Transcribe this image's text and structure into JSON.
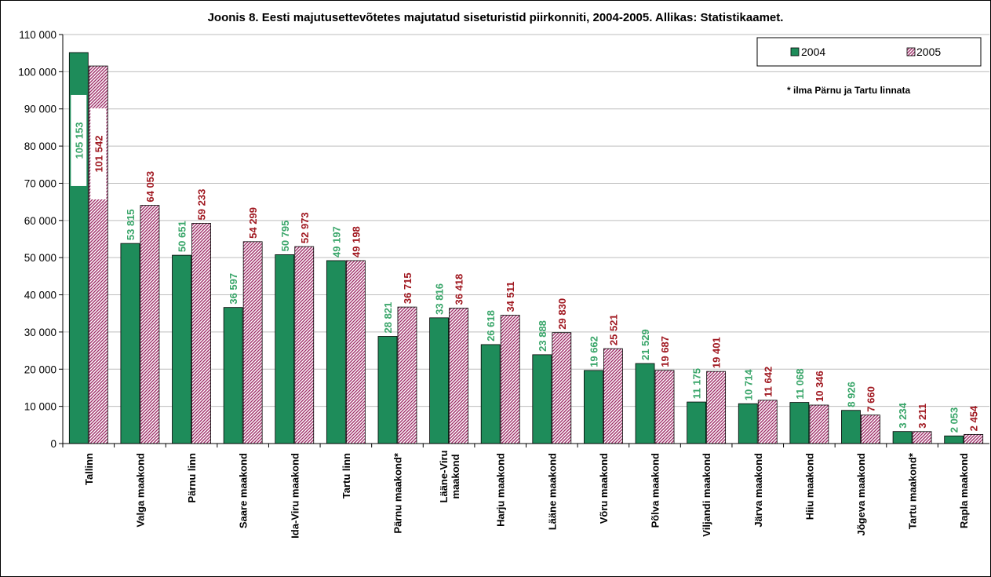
{
  "chart_data": {
    "type": "bar",
    "title": "Joonis 8. Eesti majutusettevõtetes majutatud siseturistid piirkonniti, 2004-2005. Allikas: Statistikaamet.",
    "categories": [
      "Tallinn",
      "Valga maakond",
      "Pärnu linn",
      "Saare maakond",
      "Ida-Viru maakond",
      "Tartu linn",
      "Pärnu maakond*",
      "Lääne-Viru maakond",
      "Harju maakond",
      "Lääne maakond",
      "Võru maakond",
      "Põlva maakond",
      "Viljandi maakond",
      "Järva maakond",
      "Hiiu maakond",
      "Jõgeva maakond",
      "Tartu maakond*",
      "Rapla maakond"
    ],
    "series": [
      {
        "name": "2004",
        "values": [
          105153,
          53815,
          50651,
          36597,
          50795,
          49197,
          28821,
          33816,
          26618,
          23888,
          19662,
          21529,
          11175,
          10714,
          11068,
          8926,
          3234,
          2053
        ],
        "labels": [
          "105 153",
          "53 815",
          "50 651",
          "36 597",
          "50 795",
          "49 197",
          "28 821",
          "33 816",
          "26 618",
          "23 888",
          "19 662",
          "21 529",
          "11 175",
          "10 714",
          "11 068",
          "8 926",
          "3 234",
          "2 053"
        ]
      },
      {
        "name": "2005",
        "values": [
          101542,
          64053,
          59233,
          54299,
          52973,
          49198,
          36715,
          36418,
          34511,
          29830,
          25521,
          19687,
          19401,
          11642,
          10346,
          7660,
          3211,
          2454
        ],
        "labels": [
          "101 542",
          "64 053",
          "59 233",
          "54 299",
          "52 973",
          "49 198",
          "36 715",
          "36 418",
          "34 511",
          "29 830",
          "25 521",
          "19 687",
          "19 401",
          "11 642",
          "10 346",
          "7 660",
          "3 211",
          "2 454"
        ]
      }
    ],
    "ylim": [
      0,
      110000
    ],
    "yticks": [
      0,
      10000,
      20000,
      30000,
      40000,
      50000,
      60000,
      70000,
      80000,
      90000,
      100000,
      110000
    ],
    "ytick_labels": [
      "0",
      "10 000",
      "20 000",
      "30 000",
      "40 000",
      "50 000",
      "60 000",
      "70 000",
      "80 000",
      "90 000",
      "100 000",
      "110 000"
    ],
    "grid": true,
    "legend_position": "top-right",
    "annotation": "* ilma Pärnu ja Tartu linnata",
    "colors": {
      "s2004": "#1e8c5a",
      "s2004_label": "#3aa66a",
      "s2005_label": "#a01820",
      "s2005_hatch": "#a0306a"
    }
  }
}
